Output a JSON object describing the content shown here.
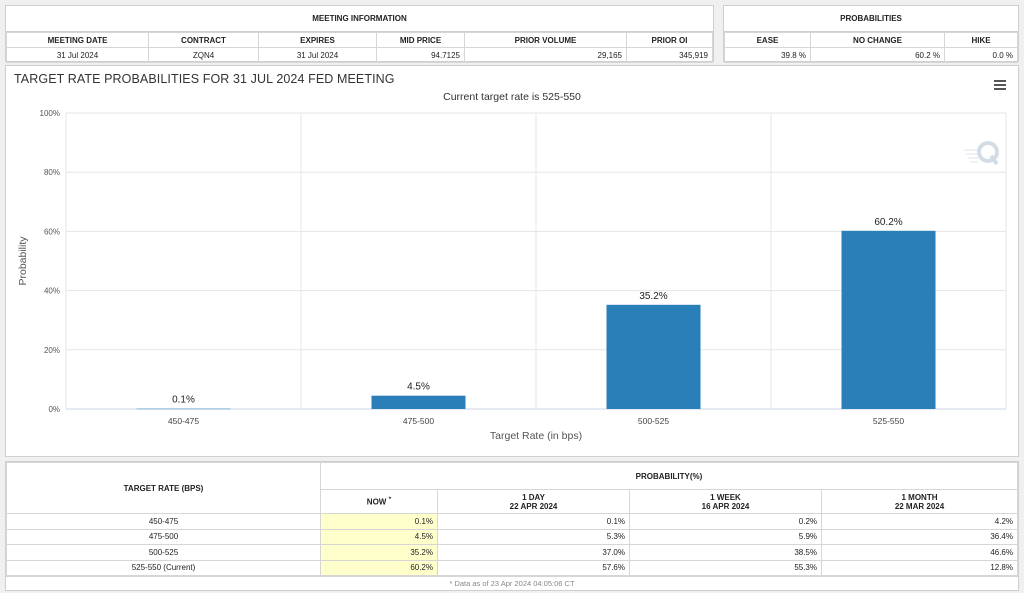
{
  "meeting_info": {
    "title": "MEETING INFORMATION",
    "headers": [
      "MEETING DATE",
      "CONTRACT",
      "EXPIRES",
      "MID PRICE",
      "PRIOR VOLUME",
      "PRIOR OI"
    ],
    "row": [
      "31 Jul 2024",
      "ZQN4",
      "31 Jul 2024",
      "94.7125",
      "29,165",
      "345,919"
    ]
  },
  "probabilities": {
    "title": "PROBABILITIES",
    "headers": [
      "EASE",
      "NO CHANGE",
      "HIKE"
    ],
    "row": [
      "39.8 %",
      "60.2 %",
      "0.0 %"
    ]
  },
  "chart_data": {
    "type": "bar",
    "title": "TARGET RATE PROBABILITIES FOR 31 JUL 2024 FED MEETING",
    "subtitle": "Current target rate is 525-550",
    "xlabel": "Target Rate (in bps)",
    "ylabel": "Probability",
    "categories": [
      "450-475",
      "475-500",
      "500-525",
      "525-550"
    ],
    "values": [
      0.1,
      4.5,
      35.2,
      60.2
    ],
    "data_labels": [
      "0.1%",
      "4.5%",
      "35.2%",
      "60.2%"
    ],
    "ylim": [
      0,
      100
    ],
    "yticks": [
      "0%",
      "20%",
      "40%",
      "60%",
      "80%",
      "100%"
    ],
    "ytick_values": [
      0,
      20,
      40,
      60,
      80,
      100
    ],
    "grid": true,
    "bar_color": "#2a7fb8"
  },
  "prob_table": {
    "rate_header": "TARGET RATE (BPS)",
    "group_header": "PROBABILITY(%)",
    "columns": [
      {
        "label": "NOW",
        "sup": "*",
        "date": ""
      },
      {
        "label": "1 DAY",
        "date": "22 APR 2024"
      },
      {
        "label": "1 WEEK",
        "date": "16 APR 2024"
      },
      {
        "label": "1 MONTH",
        "date": "22 MAR 2024"
      }
    ],
    "rows": [
      {
        "rate": "450-475",
        "now": "0.1%",
        "day": "0.1%",
        "week": "0.2%",
        "month": "4.2%"
      },
      {
        "rate": "475-500",
        "now": "4.5%",
        "day": "5.3%",
        "week": "5.9%",
        "month": "36.4%"
      },
      {
        "rate": "500-525",
        "now": "35.2%",
        "day": "37.0%",
        "week": "38.5%",
        "month": "46.6%"
      },
      {
        "rate": "525-550 (Current)",
        "now": "60.2%",
        "day": "57.6%",
        "week": "55.3%",
        "month": "12.8%"
      }
    ],
    "footnote": "* Data as of 23 Apr 2024 04:05:06 CT"
  }
}
